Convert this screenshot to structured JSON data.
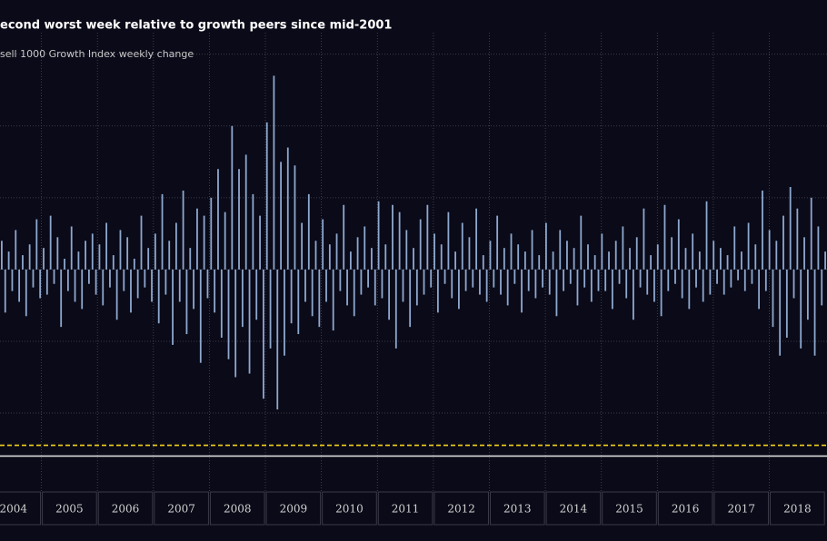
{
  "chart_data": {
    "type": "bar",
    "title": "econd worst week relative to growth peers since mid-2001",
    "series": [
      {
        "name": "sell 1000 Growth Index weekly change",
        "color": "#8ea8cf",
        "values": [
          0.8,
          -1.2,
          0.5,
          -0.6,
          1.1,
          -0.9,
          0.4,
          -1.3,
          0.7,
          -0.5,
          1.4,
          -0.8,
          0.6,
          -0.7,
          1.5,
          -0.4,
          0.9,
          -1.6,
          0.3,
          -0.6,
          1.2,
          -0.9,
          0.5,
          -1.1,
          0.8,
          -0.4,
          1.0,
          -0.7,
          0.7,
          -1.0,
          1.3,
          -0.5,
          0.4,
          -1.4,
          1.1,
          -0.6,
          0.9,
          -1.2,
          0.3,
          -0.8,
          1.5,
          -0.5,
          0.6,
          -0.9,
          1.0,
          -1.5,
          2.1,
          -0.7,
          0.8,
          -2.1,
          1.3,
          -0.9,
          2.2,
          -1.8,
          0.6,
          -1.1,
          1.7,
          -2.6,
          1.5,
          -0.8,
          2.0,
          -1.2,
          2.8,
          -1.9,
          1.6,
          -2.5,
          4.0,
          -3.0,
          2.8,
          -1.6,
          3.2,
          -2.9,
          2.1,
          -1.4,
          1.5,
          -3.6,
          4.1,
          -2.2,
          5.4,
          -3.9,
          3.0,
          -2.4,
          3.4,
          -1.5,
          2.9,
          -1.8,
          1.3,
          -0.9,
          2.1,
          -1.3,
          0.8,
          -1.6,
          1.4,
          -0.9,
          0.7,
          -1.7,
          1.0,
          -0.6,
          1.8,
          -1.0,
          0.5,
          -1.3,
          0.9,
          -0.7,
          1.2,
          -0.5,
          0.6,
          -1.0,
          1.9,
          -0.8,
          0.7,
          -1.4,
          1.8,
          -2.2,
          1.6,
          -0.9,
          1.1,
          -1.6,
          0.6,
          -1.0,
          1.4,
          -0.7,
          1.8,
          -0.5,
          1.0,
          -1.2,
          0.7,
          -0.4,
          1.6,
          -0.8,
          0.5,
          -1.1,
          1.3,
          -0.6,
          0.9,
          -0.5,
          1.7,
          -0.7,
          0.4,
          -0.9,
          0.8,
          -0.5,
          1.5,
          -0.7,
          0.6,
          -1.0,
          1.0,
          -0.4,
          0.7,
          -1.2,
          0.5,
          -0.6,
          1.1,
          -0.8,
          0.4,
          -0.5,
          1.3,
          -0.7,
          0.5,
          -1.3,
          1.1,
          -0.6,
          0.8,
          -0.4,
          0.6,
          -1.0,
          1.5,
          -0.5,
          0.7,
          -0.9,
          0.4,
          -0.6,
          1.0,
          -0.6,
          0.5,
          -1.1,
          0.8,
          -0.4,
          1.2,
          -0.8,
          0.6,
          -1.4,
          0.9,
          -0.5,
          1.7,
          -0.7,
          0.4,
          -0.9,
          0.7,
          -1.3,
          1.8,
          -0.6,
          0.9,
          -0.4,
          1.4,
          -0.8,
          0.6,
          -1.1,
          1.0,
          -0.5,
          0.5,
          -0.9,
          1.9,
          -0.7,
          0.8,
          -0.4,
          0.6,
          -0.7,
          0.4,
          -0.5,
          1.2,
          -0.3,
          0.5,
          -0.6,
          1.3,
          -0.4,
          0.7,
          -1.1,
          2.2,
          -0.6,
          1.1,
          -1.6,
          0.8,
          -2.4,
          1.5,
          -1.9,
          2.3,
          -0.8,
          1.7,
          -2.2,
          0.9,
          -1.4,
          2.0,
          -2.4,
          1.2,
          -1.0,
          0.5
        ]
      }
    ],
    "xlim": [
      2004.26,
      2019.03
    ],
    "xticks": [
      2004,
      2005,
      2006,
      2007,
      2008,
      2009,
      2010,
      2011,
      2012,
      2013,
      2014,
      2015,
      2016,
      2017,
      2018
    ],
    "ylim": [
      -6.2,
      6.6
    ],
    "grid_values": [
      6,
      4,
      2,
      0,
      -2,
      -4
    ],
    "reference_lines": [
      {
        "value": -4.9,
        "color": "#f2d21b",
        "dashed": true
      },
      {
        "value": -5.2,
        "color": "#d8d8d8",
        "dashed": false
      }
    ],
    "grid": true
  }
}
